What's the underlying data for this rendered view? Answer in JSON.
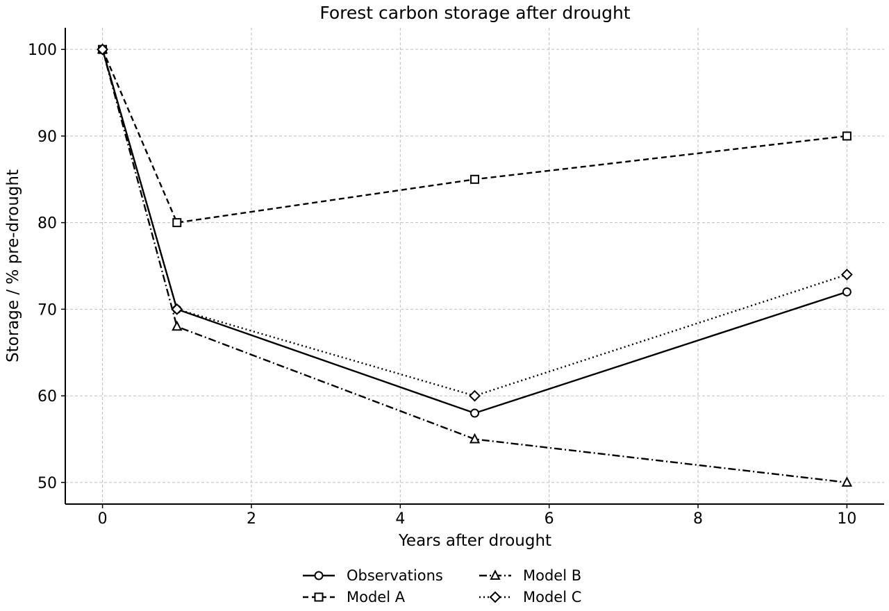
{
  "chart_data": {
    "type": "line",
    "title": "Forest carbon storage after drought",
    "xlabel": "Years after drought",
    "ylabel": "Storage / % pre-drought",
    "x": [
      0,
      1,
      5,
      10
    ],
    "xlim": [
      -0.5,
      10.5
    ],
    "ylim": [
      47.5,
      102.5
    ],
    "xticks": [
      "0",
      "2",
      "4",
      "6",
      "8",
      "10"
    ],
    "yticks": [
      "50",
      "60",
      "70",
      "80",
      "90",
      "100"
    ],
    "grid": true,
    "legend_position": "bottom-center",
    "series": [
      {
        "name": "Observations",
        "values": [
          100,
          70,
          58,
          72
        ],
        "marker": "circle",
        "dash": "solid",
        "color": "#000000"
      },
      {
        "name": "Model A",
        "values": [
          100,
          80,
          85,
          90
        ],
        "marker": "square",
        "dash": "dashed",
        "color": "#000000"
      },
      {
        "name": "Model B",
        "values": [
          100,
          68,
          55,
          50
        ],
        "marker": "triangle",
        "dash": "dashdot",
        "color": "#000000"
      },
      {
        "name": "Model C",
        "values": [
          100,
          70,
          60,
          74
        ],
        "marker": "diamond",
        "dash": "dotted",
        "color": "#000000"
      }
    ]
  }
}
